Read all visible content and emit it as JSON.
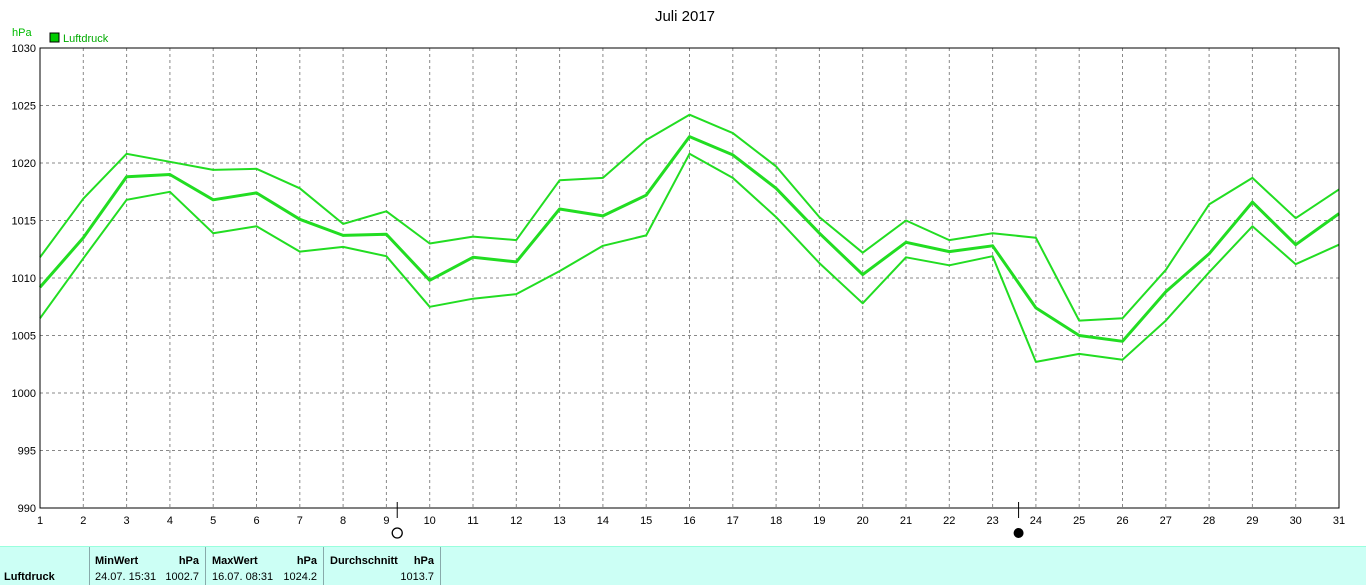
{
  "chart_data": {
    "type": "line",
    "title": "Juli 2017",
    "ylabel": "hPa",
    "ylim": [
      990,
      1030
    ],
    "yticks": [
      990,
      995,
      1000,
      1005,
      1010,
      1015,
      1020,
      1025,
      1030
    ],
    "xlim": [
      1,
      31
    ],
    "x": [
      1,
      2,
      3,
      4,
      5,
      6,
      7,
      8,
      9,
      10,
      11,
      12,
      13,
      14,
      15,
      16,
      17,
      18,
      19,
      20,
      21,
      22,
      23,
      24,
      25,
      26,
      27,
      28,
      29,
      30,
      31
    ],
    "grid": true,
    "legend": {
      "position": "top-left",
      "entries": [
        "Luftdruck"
      ]
    },
    "series": [
      {
        "role": "max",
        "color": "#22dd22",
        "values": [
          1011.8,
          1016.9,
          1020.8,
          1020.1,
          1019.4,
          1019.5,
          1017.8,
          1014.7,
          1015.8,
          1013.0,
          1013.6,
          1013.3,
          1018.5,
          1018.7,
          1022.0,
          1024.2,
          1022.6,
          1019.7,
          1015.3,
          1012.2,
          1015.0,
          1013.3,
          1013.9,
          1013.5,
          1006.3,
          1006.5,
          1010.7,
          1016.4,
          1018.7,
          1015.2,
          1017.7
        ]
      },
      {
        "role": "mean",
        "name": "Luftdruck",
        "color": "#22dd22",
        "values": [
          1009.2,
          1013.5,
          1018.8,
          1019.0,
          1016.8,
          1017.4,
          1015.1,
          1013.7,
          1013.8,
          1009.8,
          1011.8,
          1011.4,
          1016.0,
          1015.4,
          1017.2,
          1022.3,
          1020.7,
          1017.8,
          1013.9,
          1010.3,
          1013.1,
          1012.3,
          1012.8,
          1007.4,
          1005.0,
          1004.5,
          1008.8,
          1012.1,
          1016.6,
          1012.9,
          1015.6
        ]
      },
      {
        "role": "min",
        "color": "#22dd22",
        "values": [
          1006.5,
          1011.7,
          1016.8,
          1017.5,
          1013.9,
          1014.5,
          1012.3,
          1012.7,
          1011.9,
          1007.5,
          1008.2,
          1008.6,
          1010.6,
          1012.8,
          1013.7,
          1020.8,
          1018.7,
          1015.3,
          1011.3,
          1007.8,
          1011.8,
          1011.1,
          1011.9,
          1002.7,
          1003.4,
          1002.9,
          1006.3,
          1010.5,
          1014.5,
          1011.2,
          1012.9
        ]
      }
    ],
    "moon_phases": [
      {
        "day": 9.25,
        "phase": "full-moon"
      },
      {
        "day": 23.6,
        "phase": "new-moon"
      }
    ]
  },
  "footer": {
    "label": "Luftdruck",
    "min_header": "MinWert",
    "min_unit": "hPa",
    "min_time": "24.07.  15:31",
    "min_value": "1002.7",
    "max_header": "MaxWert",
    "max_unit": "hPa",
    "max_time": "16.07.  08:31",
    "max_value": "1024.2",
    "avg_header": "Durchschnitt",
    "avg_unit": "hPa",
    "avg_value": "1013.7"
  }
}
